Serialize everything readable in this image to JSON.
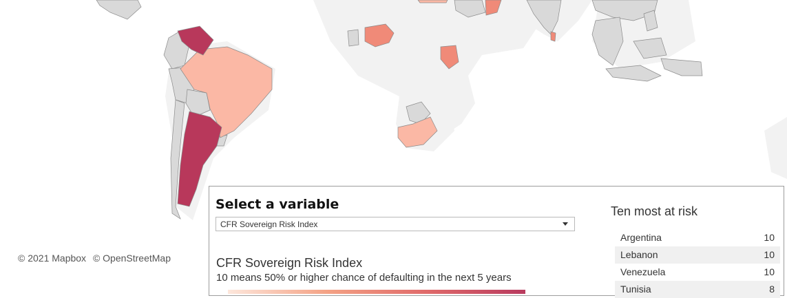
{
  "map": {
    "credits": [
      "© 2021 Mapbox",
      "© OpenStreetMap"
    ],
    "colors": {
      "land": "#f2f2f2",
      "no_data": "#d9d9d9",
      "low": "#fbb8a5",
      "mid": "#f08a78",
      "high": "#b8385b",
      "border": "#8a8a8a"
    }
  },
  "controls": {
    "select_title": "Select a variable",
    "selected_variable": "CFR Sovereign Risk Index"
  },
  "index": {
    "title": "CFR Sovereign Risk Index",
    "subtitle": "10 means 50% or higher chance of defaulting in the next 5 years"
  },
  "risk_list": {
    "title": "Ten most at risk",
    "rows": [
      {
        "country": "Argentina",
        "score": "10"
      },
      {
        "country": "Lebanon",
        "score": "10"
      },
      {
        "country": "Venezuela",
        "score": "10"
      },
      {
        "country": "Tunisia",
        "score": "8"
      }
    ]
  }
}
